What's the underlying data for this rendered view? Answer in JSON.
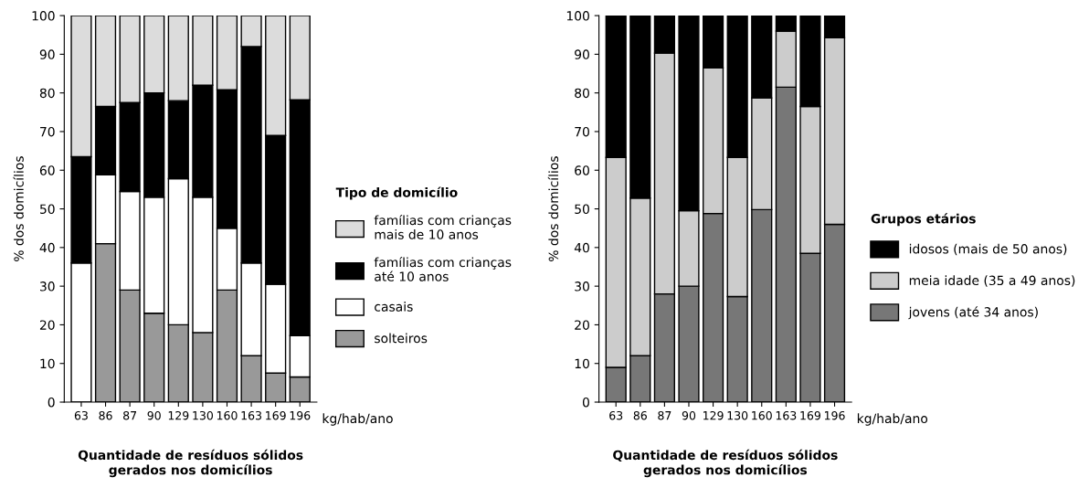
{
  "chart_data": [
    {
      "type": "bar",
      "stacked": true,
      "categories": [
        "63",
        "86",
        "87",
        "90",
        "129",
        "130",
        "160",
        "163",
        "169",
        "196"
      ],
      "ylabel": "% dos domicílios",
      "xlabel": "Quantidade de resíduos sólidos\ngerados nos domicílios",
      "legend_title": "Tipo de domicílio",
      "legend": "right",
      "annotations": [
        "kg/hab/ano"
      ],
      "ylim": [
        0,
        100
      ],
      "yticks": [
        0,
        10,
        20,
        30,
        40,
        50,
        60,
        70,
        80,
        90,
        100
      ],
      "series": [
        {
          "name": "solteiros",
          "color": "#999999",
          "values": [
            0,
            41,
            29,
            23,
            20,
            18,
            29,
            12,
            7.5,
            6.5
          ]
        },
        {
          "name": "casais",
          "color": "#ffffff",
          "values": [
            36,
            17.8,
            25.5,
            30,
            37.8,
            35,
            16,
            24,
            23,
            10.7
          ]
        },
        {
          "name": "famílias com crianças\naté 10 anos",
          "color": "#000000",
          "values": [
            27.5,
            17.7,
            23,
            27,
            20.2,
            29,
            35.8,
            56,
            38.5,
            61
          ]
        },
        {
          "name": "famílias com crianças\nmais de 10 anos",
          "color": "#dcdcdc",
          "values": [
            36.5,
            23.5,
            22.5,
            20,
            22,
            18,
            19.2,
            8,
            31,
            21.8
          ]
        }
      ]
    },
    {
      "type": "bar",
      "stacked": true,
      "categories": [
        "63",
        "86",
        "87",
        "90",
        "129",
        "130",
        "160",
        "163",
        "169",
        "196"
      ],
      "ylabel": "% dos domicílios",
      "xlabel": "Quantidade de resíduos sólidos\ngerados nos domicílios",
      "legend_title": "Grupos etários",
      "legend": "right",
      "annotations": [
        "kg/hab/ano"
      ],
      "ylim": [
        0,
        100
      ],
      "yticks": [
        0,
        10,
        20,
        30,
        40,
        50,
        60,
        70,
        80,
        90,
        100
      ],
      "series": [
        {
          "name": "jovens (até 34 anos)",
          "color": "#777777",
          "values": [
            9,
            12,
            28,
            30,
            48.8,
            27.3,
            49.8,
            81.5,
            38.5,
            46
          ]
        },
        {
          "name": "meia idade (35 a 49 anos)",
          "color": "#cccccc",
          "values": [
            54.3,
            40.8,
            62.3,
            19.5,
            37.7,
            36,
            28.9,
            14.5,
            38,
            48.3
          ]
        },
        {
          "name": "idosos (mais de 50 anos)",
          "color": "#000000",
          "values": [
            36.7,
            47.2,
            9.7,
            50.5,
            13.5,
            36.7,
            21.3,
            4,
            23.5,
            5.7
          ]
        }
      ]
    }
  ]
}
